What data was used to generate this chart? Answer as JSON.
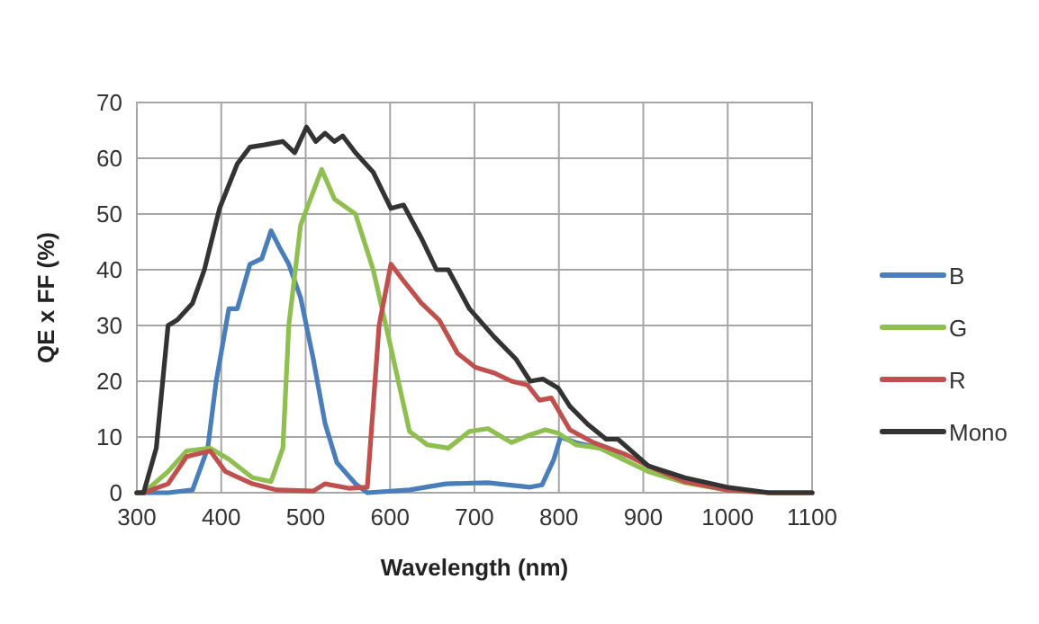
{
  "chart_data": {
    "type": "line",
    "xlabel": "Wavelength (nm)",
    "ylabel": "QE x FF (%)",
    "xlim": [
      300,
      1100
    ],
    "xticks": [
      300,
      400,
      500,
      600,
      700,
      800,
      900,
      1000,
      1100
    ],
    "ylim": [
      0,
      70
    ],
    "yticks": [
      0,
      10,
      20,
      30,
      40,
      50,
      60,
      70
    ],
    "grid": true,
    "legend": "right",
    "line_style": "solid",
    "series": [
      {
        "name": "B",
        "color": "#4a7ebb",
        "x": [
          300,
          337,
          366,
          384,
          394,
          409,
          419,
          434,
          448,
          459,
          469,
          480,
          494,
          509,
          523,
          537,
          559,
          573,
          623,
          666,
          716,
          766,
          780,
          794,
          802,
          820,
          849,
          877
        ],
        "values": [
          0,
          0,
          0.5,
          8,
          20,
          33,
          33,
          41,
          42,
          47,
          44,
          41,
          35,
          24,
          12.4,
          5.4,
          1.6,
          0,
          0.5,
          1.6,
          1.8,
          1,
          1.4,
          6,
          10,
          9,
          8,
          6
        ]
      },
      {
        "name": "G",
        "color": "#8fbf4f",
        "x": [
          300,
          308,
          337,
          359,
          387,
          409,
          437,
          459,
          473,
          480,
          494,
          509,
          519,
          534,
          559,
          580,
          601,
          623,
          644,
          669,
          694,
          716,
          744,
          766,
          784,
          799,
          820,
          849,
          877,
          906,
          949,
          999,
          1049,
          1100
        ],
        "values": [
          0,
          0,
          3.8,
          7.5,
          8,
          6,
          2.7,
          2,
          8,
          30,
          48,
          54,
          58,
          52.7,
          50,
          40,
          26,
          11,
          8.6,
          8,
          11,
          11.5,
          9,
          10.4,
          11.3,
          10.7,
          8.6,
          8,
          5.9,
          3.8,
          1.8,
          0.5,
          0,
          0
        ]
      },
      {
        "name": "R",
        "color": "#c0504d",
        "x": [
          300,
          308,
          337,
          359,
          387,
          405,
          437,
          466,
          509,
          523,
          551,
          573,
          587,
          601,
          616,
          637,
          658,
          680,
          701,
          723,
          744,
          763,
          777,
          791,
          813,
          841,
          877,
          906,
          949,
          999,
          1049,
          1100
        ],
        "values": [
          0,
          0,
          1.6,
          6.5,
          7.5,
          3.8,
          1.6,
          0.5,
          0.3,
          1.6,
          0.8,
          1,
          30,
          41,
          38,
          34,
          31,
          25,
          22.5,
          21.5,
          20,
          19.3,
          16.6,
          17,
          11.3,
          9,
          7,
          4.8,
          2,
          0.5,
          0,
          0
        ]
      },
      {
        "name": "Mono",
        "color": "#333333",
        "x": [
          300,
          308,
          323,
          337,
          348,
          366,
          380,
          398,
          419,
          434,
          451,
          473,
          487,
          501,
          512,
          523,
          534,
          544,
          559,
          580,
          601,
          616,
          637,
          655,
          669,
          694,
          723,
          749,
          766,
          781,
          799,
          813,
          834,
          856,
          870,
          906,
          949,
          999,
          1049,
          1100
        ],
        "values": [
          0,
          0,
          8,
          30,
          31,
          34,
          40,
          51,
          59,
          62,
          62.4,
          63,
          61,
          65.6,
          63,
          64.5,
          63,
          64,
          61,
          57.5,
          51,
          51.6,
          45.7,
          40,
          40,
          33,
          28,
          24,
          20,
          20.4,
          18.8,
          15.5,
          12.3,
          9.6,
          9.6,
          4.8,
          2.7,
          1,
          0,
          0
        ]
      }
    ]
  }
}
